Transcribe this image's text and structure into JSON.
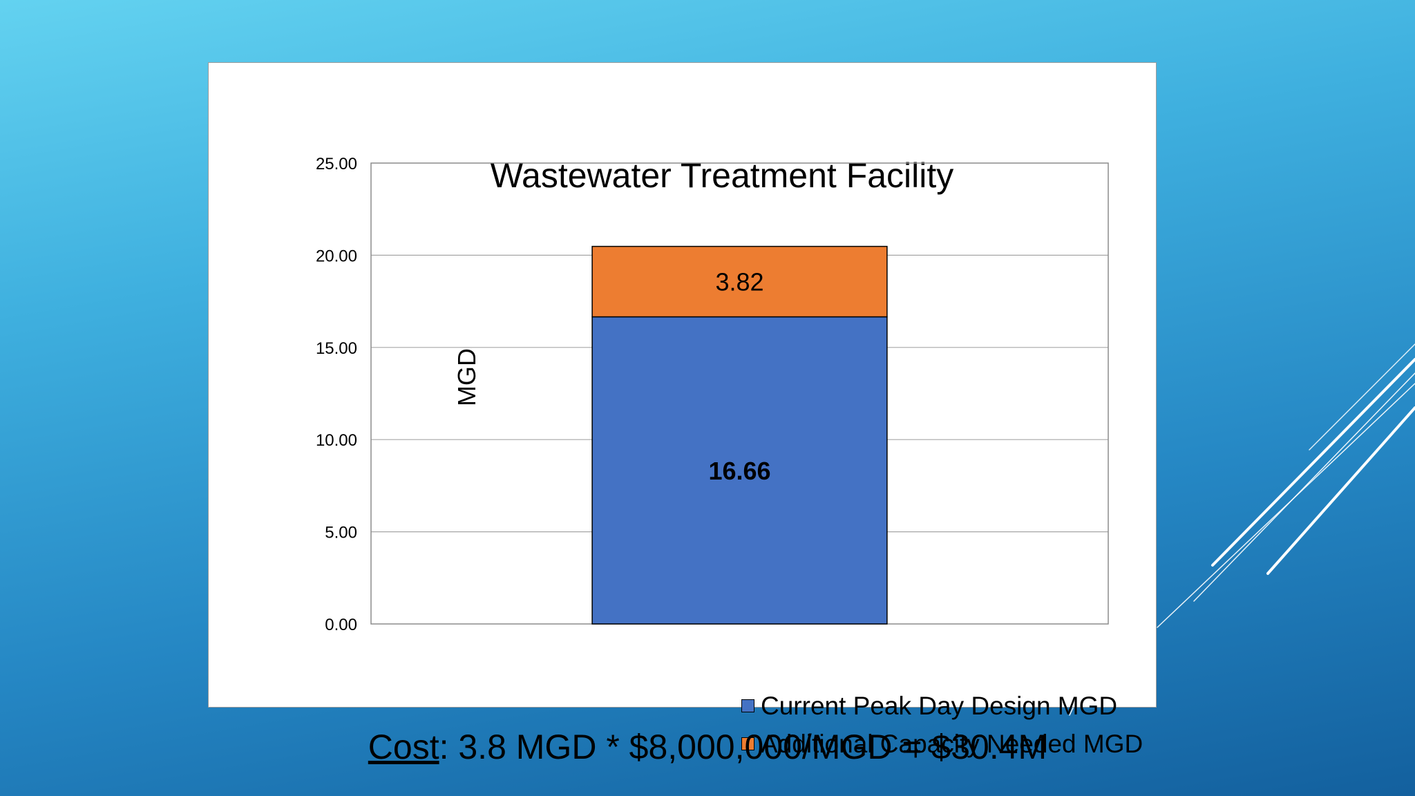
{
  "chart_data": {
    "type": "bar",
    "stacked": true,
    "title": "Wastewater Treatment Facility",
    "xlabel": "",
    "ylabel": "MGD",
    "ylim": [
      0,
      25
    ],
    "yticks": [
      "0.00",
      "5.00",
      "10.00",
      "15.00",
      "20.00",
      "25.00"
    ],
    "grid": true,
    "legend_position": "bottom",
    "categories": [
      ""
    ],
    "series": [
      {
        "name": "Current Peak Day Design MGD",
        "values": [
          16.66
        ],
        "label": "16.66",
        "color": "#4472c4",
        "label_bold": true
      },
      {
        "name": "Additional Capacity Needed MGD",
        "values": [
          3.82
        ],
        "label": "3.82",
        "color": "#ed7d31",
        "label_bold": false
      }
    ]
  },
  "cost": {
    "label": "Cost",
    "text": ":  3.8 MGD * $8,000,000/MGD = $30.4M"
  }
}
